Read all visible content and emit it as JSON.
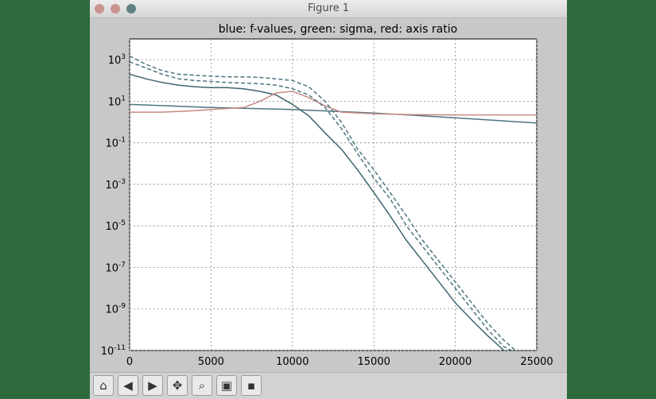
{
  "window": {
    "title": "Figure 1"
  },
  "toolbar": {
    "buttons": [
      {
        "name": "home-button",
        "icon": "home-icon",
        "glyph": "⌂"
      },
      {
        "name": "back-button",
        "icon": "back-arrow-icon",
        "glyph": "◀"
      },
      {
        "name": "forward-button",
        "icon": "forward-arrow-icon",
        "glyph": "▶"
      },
      {
        "name": "pan-button",
        "icon": "pan-move-icon",
        "glyph": "✥"
      },
      {
        "name": "zoom-button",
        "icon": "zoom-rect-icon",
        "glyph": "⌕"
      },
      {
        "name": "subplots-button",
        "icon": "subplots-config-icon",
        "glyph": "▣"
      },
      {
        "name": "save-button",
        "icon": "save-disk-icon",
        "glyph": "▪"
      }
    ]
  },
  "chart_data": {
    "type": "line",
    "title": "blue: f-values, green: sigma, red: axis ratio",
    "xlabel": "",
    "ylabel": "",
    "yscale": "log",
    "xlim": [
      0,
      25000
    ],
    "ylim_exp": [
      -11,
      4
    ],
    "xticks": [
      "0",
      "5000",
      "10000",
      "15000",
      "20000",
      "25000"
    ],
    "ytick_exps": [
      -11,
      -9,
      -7,
      -5,
      -3,
      -1,
      1,
      3
    ],
    "grid": true,
    "colors": {
      "blue": "#3f6470",
      "green": "#4c7481",
      "red": "#c78a83"
    },
    "series": [
      {
        "key": "f-values",
        "color": "blue",
        "dash": false,
        "x": [
          0,
          1000,
          2000,
          3000,
          4000,
          5000,
          6000,
          7000,
          8000,
          9000,
          10000,
          11000,
          12000,
          13000,
          14000,
          15000,
          16000,
          17000,
          18000,
          19000,
          20000,
          21000,
          22000,
          23000,
          24000,
          25000
        ],
        "y": [
          200,
          120,
          80,
          60,
          50,
          45,
          45,
          40,
          30,
          20,
          7,
          2,
          0.3,
          0.05,
          0.005,
          0.0004,
          3e-05,
          2e-06,
          2e-07,
          2e-08,
          2e-09,
          3e-10,
          5e-11,
          1e-11,
          4e-12,
          1e-12
        ]
      },
      {
        "key": "sigma",
        "color": "green",
        "dash": false,
        "x": [
          0,
          2500,
          5000,
          7500,
          10000,
          12500,
          15000,
          17500,
          20000,
          22500,
          25000
        ],
        "y": [
          7,
          6,
          5,
          4.5,
          4,
          3.3,
          2.7,
          2.1,
          1.6,
          1.2,
          0.9
        ]
      },
      {
        "key": "axis ratio",
        "color": "red",
        "dash": false,
        "x": [
          0,
          2000,
          4000,
          5000,
          6000,
          7000,
          8000,
          9000,
          10000,
          11000,
          12000,
          13000,
          15000,
          17000,
          20000,
          22000,
          25000
        ],
        "y": [
          3,
          3,
          3.5,
          4,
          4.5,
          5,
          10,
          25,
          30,
          15,
          6,
          3,
          2.5,
          2.3,
          2.2,
          2.2,
          2.2
        ]
      },
      {
        "key": "upper-dashed",
        "color": "green",
        "dash": true,
        "x": [
          0,
          1000,
          2000,
          3000,
          4000,
          5000,
          6000,
          7000,
          8000,
          9000,
          10000,
          11000,
          12000,
          13000,
          14000,
          15000,
          16000,
          17000,
          18000,
          19000,
          20000,
          21000,
          22000,
          23000,
          24000,
          25000
        ],
        "y": [
          1500,
          600,
          300,
          200,
          180,
          160,
          150,
          150,
          140,
          120,
          100,
          50,
          10,
          1,
          0.05,
          0.005,
          0.0004,
          3e-05,
          2e-06,
          2e-07,
          2e-08,
          2e-09,
          2e-10,
          3e-11,
          5e-12,
          1e-12
        ]
      },
      {
        "key": "lower-dashed",
        "color": "green",
        "dash": true,
        "x": [
          0,
          1000,
          2000,
          3000,
          4000,
          5000,
          6000,
          7000,
          8000,
          9000,
          10000,
          11000,
          12000,
          13000,
          14000,
          15000,
          16000,
          17000,
          18000,
          19000,
          20000,
          21000,
          22000,
          23000,
          24000,
          25000
        ],
        "y": [
          800,
          400,
          200,
          120,
          100,
          90,
          80,
          75,
          70,
          60,
          40,
          20,
          5,
          0.5,
          0.03,
          0.002,
          0.0002,
          1e-05,
          1e-06,
          1e-07,
          1e-08,
          1e-09,
          1e-10,
          1.5e-11,
          3e-12,
          7e-13
        ]
      }
    ]
  }
}
